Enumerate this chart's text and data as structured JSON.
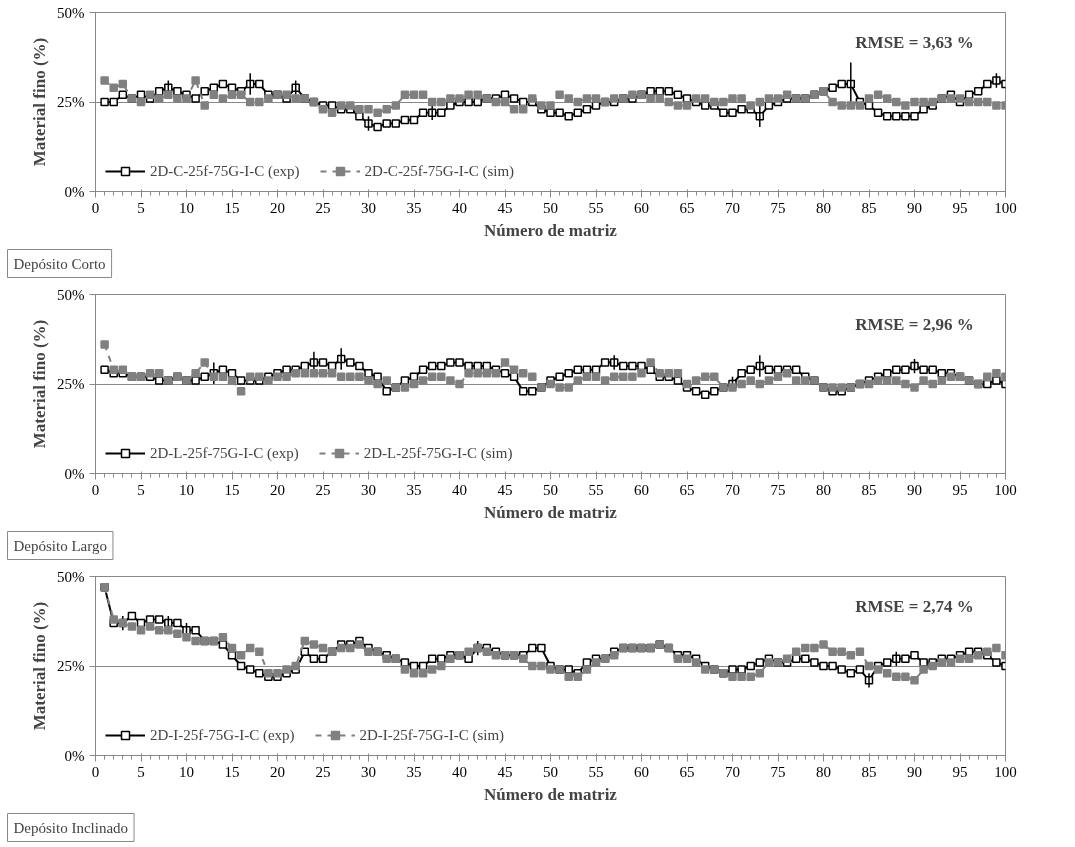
{
  "chart_data": [
    {
      "type": "line",
      "xlabel": "Número de matriz",
      "ylabel": "Material fino (%)",
      "annotations": [
        "RMSE = 3,63 %",
        "Depósito Corto"
      ],
      "x": [
        1,
        2,
        3,
        4,
        5,
        6,
        7,
        8,
        9,
        10,
        11,
        12,
        13,
        14,
        15,
        16,
        17,
        18,
        19,
        20,
        21,
        22,
        23,
        24,
        25,
        26,
        27,
        28,
        29,
        30,
        31,
        32,
        33,
        34,
        35,
        36,
        37,
        38,
        39,
        40,
        41,
        42,
        43,
        44,
        45,
        46,
        47,
        48,
        49,
        50,
        51,
        52,
        53,
        54,
        55,
        56,
        57,
        58,
        59,
        60,
        61,
        62,
        63,
        64,
        65,
        66,
        67,
        68,
        69,
        70,
        71,
        72,
        73,
        74,
        75,
        76,
        77,
        78,
        79,
        80,
        81,
        82,
        83,
        84,
        85,
        86,
        87,
        88,
        89,
        90,
        91,
        92,
        93,
        94,
        95,
        96,
        97,
        98,
        99,
        100
      ],
      "xlim": [
        0,
        100
      ],
      "xticks": [
        0,
        5,
        10,
        15,
        20,
        25,
        30,
        35,
        40,
        45,
        50,
        55,
        60,
        65,
        70,
        75,
        80,
        85,
        90,
        95,
        100
      ],
      "ylim": [
        0,
        50
      ],
      "yticks": [
        {
          "value": 0,
          "label": "0%"
        },
        {
          "value": 25,
          "label": "25%"
        },
        {
          "value": 50,
          "label": "50%"
        }
      ],
      "grid": "y",
      "legend": "bottom left",
      "marker": "square",
      "series": [
        {
          "name": "2D-C-25f-75G-I-C (exp)",
          "color": "#000000",
          "line_style": "solid",
          "values": [
            25,
            25,
            27,
            26,
            27,
            26,
            28,
            29,
            28,
            27,
            26,
            28,
            29,
            30,
            29,
            28,
            30,
            30,
            27,
            27,
            26,
            29,
            26,
            25,
            24,
            24,
            23,
            23,
            21,
            19,
            18,
            19,
            19,
            20,
            20,
            22,
            22,
            22,
            24,
            25,
            25,
            25,
            26,
            26,
            27,
            26,
            25,
            25,
            23,
            22,
            22,
            21,
            22,
            23,
            24,
            25,
            25,
            26,
            26,
            27,
            28,
            28,
            28,
            27,
            26,
            25,
            24,
            24,
            22,
            22,
            23,
            23,
            21,
            24,
            25,
            26,
            26,
            26,
            27,
            28,
            29,
            30,
            30,
            25,
            24,
            22,
            21,
            21,
            21,
            21,
            23,
            24,
            26,
            27,
            25,
            27,
            28,
            30,
            31,
            30
          ],
          "errors": [
            null,
            null,
            null,
            null,
            null,
            null,
            null,
            2,
            null,
            null,
            null,
            null,
            null,
            null,
            null,
            null,
            3,
            null,
            null,
            null,
            null,
            2,
            null,
            null,
            null,
            null,
            null,
            null,
            null,
            2,
            null,
            null,
            null,
            null,
            null,
            null,
            2,
            null,
            null,
            null,
            null,
            null,
            null,
            null,
            null,
            null,
            null,
            null,
            null,
            null,
            null,
            null,
            null,
            null,
            null,
            null,
            null,
            null,
            null,
            null,
            null,
            null,
            null,
            null,
            null,
            null,
            null,
            null,
            null,
            null,
            null,
            null,
            3,
            null,
            null,
            null,
            null,
            null,
            null,
            null,
            null,
            null,
            6,
            null,
            null,
            null,
            null,
            null,
            null,
            null,
            null,
            null,
            null,
            null,
            null,
            null,
            null,
            null,
            2,
            null
          ]
        },
        {
          "name": "2D-C-25f-75G-I-C (sim)",
          "color": "#808080",
          "line_style": "dashed",
          "values": [
            31,
            29,
            30,
            26,
            25,
            27,
            26,
            27,
            26,
            26,
            31,
            24,
            27,
            26,
            27,
            27,
            25,
            25,
            26,
            27,
            27,
            26,
            26,
            25,
            23,
            22,
            24,
            24,
            23,
            23,
            22,
            23,
            24,
            27,
            27,
            27,
            25,
            25,
            26,
            26,
            27,
            27,
            26,
            25,
            25,
            23,
            23,
            26,
            24,
            24,
            27,
            26,
            25,
            26,
            26,
            25,
            26,
            26,
            27,
            27,
            26,
            26,
            25,
            24,
            24,
            26,
            26,
            25,
            25,
            26,
            26,
            24,
            25,
            26,
            26,
            27,
            26,
            26,
            27,
            28,
            25,
            24,
            24,
            24,
            26,
            27,
            26,
            25,
            24,
            25,
            25,
            25,
            26,
            26,
            26,
            25,
            25,
            25,
            24,
            24
          ]
        }
      ]
    },
    {
      "type": "line",
      "xlabel": "Número de matriz",
      "ylabel": "Material fino (%)",
      "annotations": [
        "RMSE = 2,96 %",
        "Depósito Largo"
      ],
      "x": [
        1,
        2,
        3,
        4,
        5,
        6,
        7,
        8,
        9,
        10,
        11,
        12,
        13,
        14,
        15,
        16,
        17,
        18,
        19,
        20,
        21,
        22,
        23,
        24,
        25,
        26,
        27,
        28,
        29,
        30,
        31,
        32,
        33,
        34,
        35,
        36,
        37,
        38,
        39,
        40,
        41,
        42,
        43,
        44,
        45,
        46,
        47,
        48,
        49,
        50,
        51,
        52,
        53,
        54,
        55,
        56,
        57,
        58,
        59,
        60,
        61,
        62,
        63,
        64,
        65,
        66,
        67,
        68,
        69,
        70,
        71,
        72,
        73,
        74,
        75,
        76,
        77,
        78,
        79,
        80,
        81,
        82,
        83,
        84,
        85,
        86,
        87,
        88,
        89,
        90,
        91,
        92,
        93,
        94,
        95,
        96,
        97,
        98,
        99,
        100
      ],
      "xlim": [
        0,
        100
      ],
      "xticks": [
        0,
        5,
        10,
        15,
        20,
        25,
        30,
        35,
        40,
        45,
        50,
        55,
        60,
        65,
        70,
        75,
        80,
        85,
        90,
        95,
        100
      ],
      "ylim": [
        0,
        50
      ],
      "yticks": [
        {
          "value": 0,
          "label": "0%"
        },
        {
          "value": 25,
          "label": "25%"
        },
        {
          "value": 50,
          "label": "50%"
        }
      ],
      "grid": "y",
      "legend": "bottom left",
      "marker": "square",
      "series": [
        {
          "name": "2D-L-25f-75G-I-C (exp)",
          "color": "#000000",
          "line_style": "solid",
          "values": [
            29,
            28,
            28,
            27,
            27,
            27,
            26,
            26,
            27,
            26,
            26,
            27,
            28,
            29,
            28,
            26,
            26,
            26,
            27,
            28,
            29,
            29,
            30,
            31,
            31,
            30,
            32,
            31,
            30,
            28,
            27,
            23,
            24,
            26,
            27,
            29,
            30,
            30,
            31,
            31,
            30,
            30,
            30,
            29,
            28,
            27,
            23,
            23,
            24,
            26,
            27,
            28,
            29,
            29,
            29,
            31,
            31,
            30,
            30,
            30,
            29,
            27,
            27,
            26,
            24,
            23,
            22,
            23,
            24,
            25,
            28,
            29,
            30,
            29,
            29,
            29,
            29,
            27,
            26,
            24,
            23,
            23,
            24,
            25,
            26,
            27,
            28,
            29,
            29,
            30,
            29,
            29,
            28,
            28,
            27,
            26,
            25,
            25,
            26,
            25
          ],
          "errors": [
            null,
            null,
            null,
            null,
            null,
            null,
            null,
            null,
            null,
            null,
            null,
            null,
            3,
            null,
            null,
            null,
            null,
            null,
            null,
            null,
            null,
            null,
            null,
            3,
            null,
            null,
            3,
            null,
            null,
            null,
            null,
            null,
            null,
            null,
            null,
            null,
            null,
            null,
            null,
            null,
            null,
            null,
            null,
            null,
            null,
            null,
            null,
            null,
            null,
            null,
            null,
            null,
            null,
            null,
            null,
            null,
            2,
            null,
            null,
            null,
            null,
            null,
            null,
            null,
            null,
            null,
            null,
            null,
            null,
            2,
            null,
            null,
            3,
            null,
            null,
            null,
            null,
            null,
            null,
            null,
            null,
            null,
            null,
            null,
            null,
            null,
            null,
            null,
            null,
            2,
            null,
            null,
            null,
            null,
            null,
            null,
            null,
            null,
            null,
            null
          ]
        },
        {
          "name": "2D-L-25f-75G-I-C (sim)",
          "color": "#808080",
          "line_style": "dashed",
          "values": [
            36,
            29,
            29,
            27,
            27,
            28,
            28,
            26,
            27,
            26,
            28,
            31,
            27,
            27,
            26,
            23,
            27,
            27,
            26,
            27,
            27,
            28,
            28,
            28,
            28,
            28,
            27,
            27,
            27,
            26,
            25,
            26,
            24,
            24,
            25,
            26,
            27,
            27,
            26,
            25,
            28,
            28,
            28,
            28,
            31,
            29,
            28,
            27,
            24,
            25,
            24,
            24,
            26,
            27,
            27,
            26,
            27,
            27,
            27,
            28,
            31,
            28,
            28,
            28,
            25,
            26,
            27,
            27,
            24,
            24,
            25,
            26,
            25,
            26,
            27,
            28,
            26,
            26,
            26,
            24,
            24,
            24,
            24,
            25,
            25,
            26,
            26,
            26,
            25,
            24,
            26,
            25,
            26,
            27,
            27,
            26,
            25,
            27,
            28,
            27
          ]
        }
      ]
    },
    {
      "type": "line",
      "xlabel": "Número de matriz",
      "ylabel": "Material fino (%)",
      "annotations": [
        "RMSE = 2,74 %",
        "Depósito Inclinado"
      ],
      "x": [
        1,
        2,
        3,
        4,
        5,
        6,
        7,
        8,
        9,
        10,
        11,
        12,
        13,
        14,
        15,
        16,
        17,
        18,
        19,
        20,
        21,
        22,
        23,
        24,
        25,
        26,
        27,
        28,
        29,
        30,
        31,
        32,
        33,
        34,
        35,
        36,
        37,
        38,
        39,
        40,
        41,
        42,
        43,
        44,
        45,
        46,
        47,
        48,
        49,
        50,
        51,
        52,
        53,
        54,
        55,
        56,
        57,
        58,
        59,
        60,
        61,
        62,
        63,
        64,
        65,
        66,
        67,
        68,
        69,
        70,
        71,
        72,
        73,
        74,
        75,
        76,
        77,
        78,
        79,
        80,
        81,
        82,
        83,
        84,
        85,
        86,
        87,
        88,
        89,
        90,
        91,
        92,
        93,
        94,
        95,
        96,
        97,
        98,
        99,
        100
      ],
      "xlim": [
        0,
        100
      ],
      "xticks": [
        0,
        5,
        10,
        15,
        20,
        25,
        30,
        35,
        40,
        45,
        50,
        55,
        60,
        65,
        70,
        75,
        80,
        85,
        90,
        95,
        100
      ],
      "ylim": [
        0,
        50
      ],
      "yticks": [
        {
          "value": 0,
          "label": "0%"
        },
        {
          "value": 25,
          "label": "25%"
        },
        {
          "value": 50,
          "label": "50%"
        }
      ],
      "grid": "y",
      "legend": "bottom left",
      "marker": "square",
      "series": [
        {
          "name": "2D-I-25f-75G-I-C (exp)",
          "color": "#000000",
          "line_style": "solid",
          "values": [
            47,
            37,
            37,
            39,
            37,
            38,
            38,
            37,
            37,
            35,
            35,
            32,
            32,
            31,
            28,
            25,
            24,
            23,
            22,
            22,
            23,
            24,
            29,
            27,
            27,
            29,
            31,
            31,
            32,
            30,
            29,
            28,
            27,
            26,
            25,
            25,
            27,
            27,
            28,
            28,
            27,
            30,
            30,
            29,
            28,
            28,
            28,
            30,
            30,
            25,
            24,
            24,
            23,
            26,
            27,
            27,
            29,
            30,
            30,
            30,
            30,
            31,
            30,
            28,
            28,
            27,
            25,
            24,
            23,
            24,
            24,
            25,
            26,
            27,
            26,
            26,
            27,
            27,
            26,
            25,
            25,
            24,
            23,
            24,
            21,
            25,
            26,
            27,
            27,
            28,
            26,
            26,
            27,
            27,
            28,
            29,
            29,
            28,
            26,
            25
          ],
          "errors": [
            null,
            null,
            2,
            null,
            null,
            null,
            null,
            2,
            null,
            2,
            null,
            null,
            null,
            null,
            null,
            null,
            null,
            null,
            null,
            null,
            null,
            null,
            null,
            null,
            null,
            null,
            null,
            null,
            null,
            null,
            null,
            null,
            null,
            null,
            null,
            null,
            null,
            null,
            null,
            null,
            null,
            2,
            null,
            null,
            null,
            null,
            null,
            null,
            null,
            null,
            null,
            null,
            null,
            null,
            null,
            null,
            null,
            null,
            null,
            null,
            null,
            null,
            null,
            null,
            null,
            null,
            null,
            null,
            null,
            null,
            null,
            null,
            null,
            null,
            null,
            null,
            null,
            null,
            null,
            null,
            null,
            null,
            null,
            null,
            2,
            null,
            null,
            2,
            null,
            null,
            null,
            null,
            null,
            null,
            null,
            null,
            null,
            null,
            null,
            null
          ]
        },
        {
          "name": "2D-I-25f-75G-I-C (sim)",
          "color": "#808080",
          "line_style": "dashed",
          "values": [
            47,
            38,
            37,
            36,
            35,
            36,
            35,
            35,
            34,
            33,
            32,
            32,
            32,
            33,
            30,
            28,
            30,
            29,
            23,
            23,
            24,
            25,
            32,
            31,
            30,
            29,
            30,
            30,
            31,
            29,
            29,
            27,
            27,
            24,
            23,
            23,
            24,
            25,
            27,
            28,
            29,
            30,
            29,
            28,
            28,
            28,
            27,
            25,
            25,
            24,
            24,
            22,
            22,
            24,
            26,
            27,
            28,
            30,
            30,
            30,
            30,
            31,
            30,
            27,
            27,
            26,
            24,
            24,
            23,
            22,
            22,
            22,
            23,
            26,
            26,
            27,
            29,
            30,
            30,
            31,
            29,
            29,
            28,
            29,
            25,
            24,
            23,
            22,
            22,
            21,
            24,
            25,
            26,
            26,
            27,
            27,
            28,
            29,
            30,
            28
          ]
        }
      ]
    }
  ]
}
